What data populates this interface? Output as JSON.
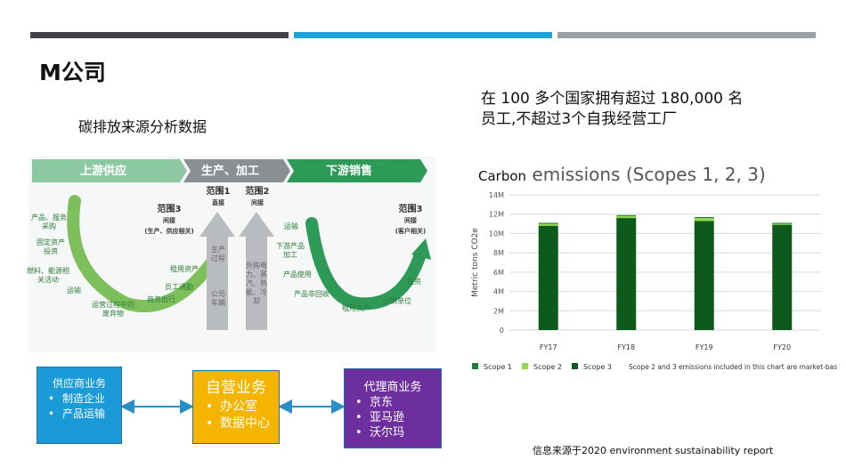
{
  "slide": {
    "title": "M公司",
    "subtitle": "碳排放来源分析数据",
    "description_line1": "在 100 多个国家拥有超过 180,000 名",
    "description_line2": "员工,不超过3个自我经营工厂",
    "source_note": "信息来源于2020 environment sustainability report"
  },
  "value_chain": {
    "stage_upstream": "上游供应",
    "stage_production": "生产、加工",
    "stage_downstream": "下游销售",
    "scope1_title": "范围1",
    "scope1_sub": "直接",
    "scope2_title": "范围2",
    "scope2_sub": "间接",
    "scope3_left_title": "范围3",
    "scope3_left_sub1": "间接",
    "scope3_left_sub2": "(生产、供应相关)",
    "scope3_right_title": "范围3",
    "scope3_right_sub1": "间接",
    "scope3_right_sub2": "(客户相关)",
    "scope1_items": [
      "生产",
      "过程",
      "公司",
      "车辆"
    ],
    "scope2_items": [
      "外购电",
      "力、蒸",
      "汽、热",
      "能、冷",
      "却"
    ],
    "upstream_items": [
      "产品、服务",
      "采购",
      "固定资产",
      "投资",
      "燃料、能源相",
      "关活动",
      "运输",
      "运营过程中的",
      "废弃物",
      "商务出行",
      "员工通勤",
      "租用资产"
    ],
    "downstream_items": [
      "运输",
      "下游产品",
      "加工",
      "产品使用",
      "产品非回收",
      "租用资产",
      "分销单位",
      "投资"
    ]
  },
  "business": {
    "supplier": {
      "title": "供应商业务",
      "items": [
        "制造企业",
        "产品运输"
      ]
    },
    "self": {
      "title": "自营业务",
      "items": [
        "办公室",
        "数据中心"
      ]
    },
    "agent": {
      "title": "代理商业务",
      "items": [
        "京东",
        "亚马逊",
        "沃尔玛"
      ]
    }
  },
  "chart_title_prefix": "Carbon",
  "chart_title_main": "emissions (Scopes 1, 2, 3)",
  "chart_data": {
    "type": "bar",
    "stacked": true,
    "ylabel": "Metric tons CO2e",
    "ylim": [
      0,
      14000000
    ],
    "y_ticks": [
      "0",
      "2M",
      "4M",
      "6M",
      "8M",
      "10M",
      "12M",
      "14M"
    ],
    "categories": [
      "FY17",
      "FY18",
      "FY19",
      "FY20"
    ],
    "series": [
      {
        "name": "Scope 1",
        "color": "#1e7d32",
        "values": [
          100000,
          100000,
          100000,
          100000
        ]
      },
      {
        "name": "Scope 2",
        "color": "#8ed84a",
        "values": [
          200000,
          200000,
          300000,
          100000
        ]
      },
      {
        "name": "Scope 3",
        "color": "#0e5a1c",
        "values": [
          10800000,
          11600000,
          11300000,
          10900000
        ]
      }
    ],
    "legend_note": "Scope 2 and 3 emissions included in this chart are market-based.",
    "grid": true,
    "legend_position": "bottom"
  }
}
